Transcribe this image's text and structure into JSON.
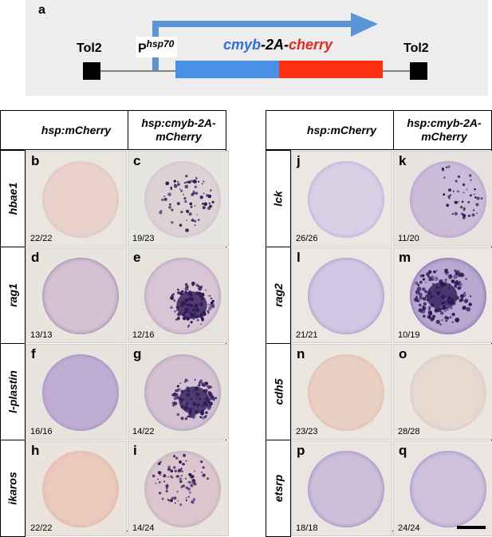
{
  "panel_a": {
    "letter": "a",
    "tol2_left": "Tol2",
    "tol2_right": "Tol2",
    "promoter_base": "P",
    "promoter_sup": "hsp70",
    "construct_part1": "cmyb",
    "construct_part2": "-2A-",
    "construct_part3": "cherry",
    "colors": {
      "arrow": "#5b95d6",
      "cmyb": "#2f6fe0",
      "cherry": "#e8281e",
      "box_bg": "#ededed"
    }
  },
  "left_grid": {
    "col_headers": [
      "hsp:mCherry",
      "hsp:cmyb-2A-mCherry"
    ],
    "rows": [
      {
        "gene": "hbae1",
        "cells": [
          {
            "letter": "b",
            "count": "22/22"
          },
          {
            "letter": "c",
            "count": "19/23"
          }
        ]
      },
      {
        "gene": "rag1",
        "cells": [
          {
            "letter": "d",
            "count": "13/13"
          },
          {
            "letter": "e",
            "count": "12/16"
          }
        ]
      },
      {
        "gene": "l-plastin",
        "cells": [
          {
            "letter": "f",
            "count": "16/16"
          },
          {
            "letter": "g",
            "count": "14/22"
          }
        ]
      },
      {
        "gene": "ikaros",
        "cells": [
          {
            "letter": "h",
            "count": "22/22"
          },
          {
            "letter": "i",
            "count": "14/24"
          }
        ]
      }
    ]
  },
  "right_grid": {
    "col_headers": [
      "hsp:mCherry",
      "hsp:cmyb-2A-mCherry"
    ],
    "rows": [
      {
        "gene": "lck",
        "cells": [
          {
            "letter": "j",
            "count": "26/26"
          },
          {
            "letter": "k",
            "count": "11/20"
          }
        ]
      },
      {
        "gene": "rag2",
        "cells": [
          {
            "letter": "l",
            "count": "21/21"
          },
          {
            "letter": "m",
            "count": "10/19"
          }
        ]
      },
      {
        "gene": "cdh5",
        "cells": [
          {
            "letter": "n",
            "count": "23/23"
          },
          {
            "letter": "o",
            "count": "28/28"
          }
        ]
      },
      {
        "gene": "etsrp",
        "cells": [
          {
            "letter": "p",
            "count": "18/18"
          },
          {
            "letter": "q",
            "count": "24/24"
          }
        ]
      }
    ]
  }
}
